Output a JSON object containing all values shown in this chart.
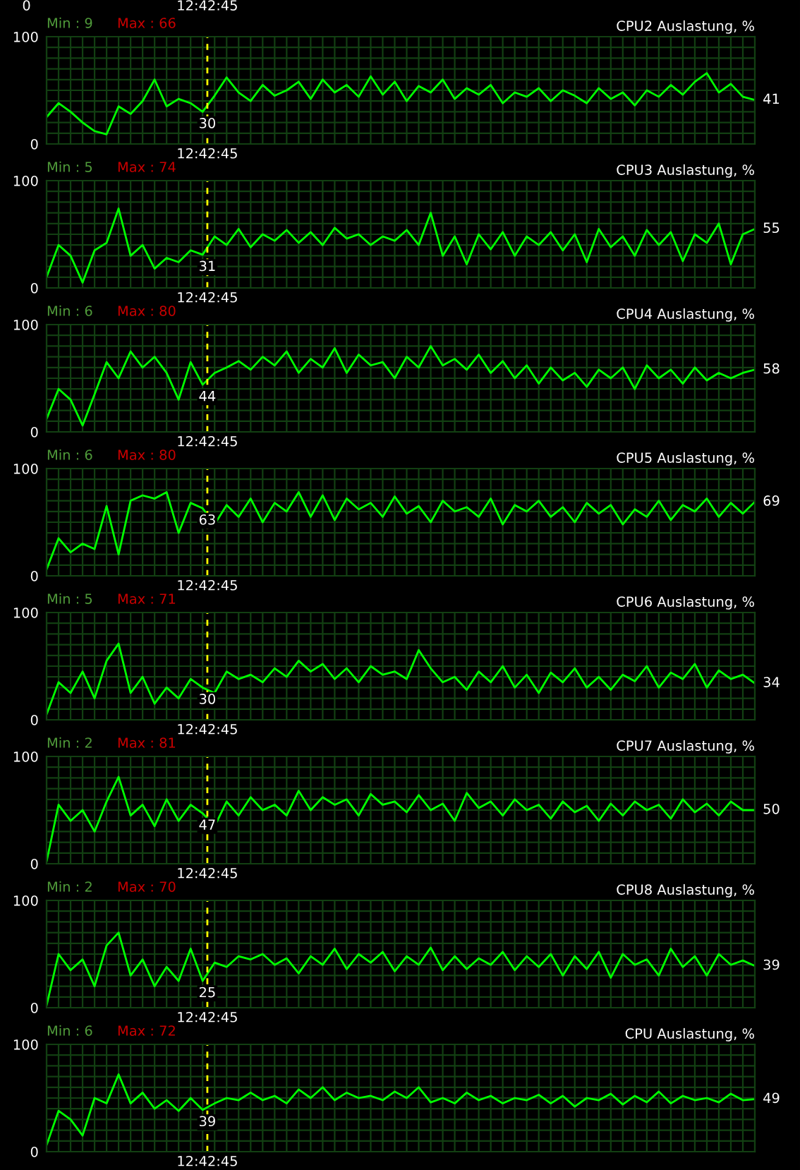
{
  "chart_data": [
    {
      "type": "line",
      "title": "CPU2 Auslastung, %",
      "categories": [
        null,
        null,
        null,
        null,
        null,
        null,
        null,
        null,
        null,
        null,
        null,
        null,
        null,
        null,
        null,
        null,
        null,
        null,
        null,
        null,
        null,
        null,
        null,
        null,
        null,
        null,
        null,
        null,
        null,
        null,
        null,
        null,
        null,
        null,
        null,
        null,
        null,
        null,
        null,
        null,
        null,
        null,
        null,
        null,
        null,
        null,
        null,
        null,
        null,
        null,
        null,
        null,
        null,
        null,
        null,
        null,
        null,
        null,
        null,
        null
      ],
      "series": [
        {
          "color": "#00ff00",
          "values": [
            25,
            38,
            30,
            20,
            12,
            9,
            35,
            28,
            40,
            60,
            35,
            42,
            38,
            30,
            45,
            62,
            48,
            40,
            55,
            45,
            50,
            58,
            42,
            60,
            48,
            55,
            44,
            63,
            46,
            58,
            40,
            54,
            48,
            60,
            42,
            52,
            46,
            55,
            38,
            48,
            44,
            52,
            40,
            50,
            45,
            38,
            52,
            42,
            48,
            36,
            50,
            44,
            55,
            46,
            58,
            66,
            48,
            56,
            44,
            41
          ]
        }
      ],
      "ylim": [
        0,
        100
      ],
      "yticks": [
        0,
        {
          "value": 10,
          "label": null
        },
        {
          "value": 20,
          "label": null
        },
        {
          "value": 30,
          "label": null
        },
        {
          "value": 40,
          "label": null
        },
        {
          "value": 50,
          "label": null
        },
        {
          "value": 60,
          "label": null
        },
        {
          "value": 70,
          "label": null
        },
        {
          "value": 80,
          "label": null
        },
        {
          "value": 90,
          "label": null
        },
        100
      ],
      "grid": true,
      "annotations": [
        "Min : 9",
        "Max : 66",
        "30",
        "41",
        "12:42:45",
        "0",
        "12:42:45"
      ]
    },
    {
      "type": "line",
      "title": "CPU3 Auslastung, %",
      "categories": [
        null,
        null,
        null,
        null,
        null,
        null,
        null,
        null,
        null,
        null,
        null,
        null,
        null,
        null,
        null,
        null,
        null,
        null,
        null,
        null,
        null,
        null,
        null,
        null,
        null,
        null,
        null,
        null,
        null,
        null,
        null,
        null,
        null,
        null,
        null,
        null,
        null,
        null,
        null,
        null,
        null,
        null,
        null,
        null,
        null,
        null,
        null,
        null,
        null,
        null,
        null,
        null,
        null,
        null,
        null,
        null,
        null,
        null,
        null,
        null
      ],
      "series": [
        {
          "color": "#00ff00",
          "values": [
            10,
            40,
            30,
            5,
            35,
            42,
            74,
            30,
            40,
            18,
            28,
            24,
            35,
            31,
            48,
            40,
            55,
            38,
            50,
            44,
            54,
            42,
            52,
            40,
            56,
            46,
            50,
            40,
            48,
            44,
            54,
            40,
            70,
            30,
            48,
            22,
            50,
            36,
            52,
            30,
            48,
            40,
            52,
            35,
            50,
            24,
            55,
            38,
            48,
            30,
            54,
            40,
            52,
            25,
            50,
            42,
            60,
            22,
            50,
            55
          ]
        }
      ],
      "ylim": [
        0,
        100
      ],
      "yticks": [
        0,
        {
          "value": 10,
          "label": null
        },
        {
          "value": 20,
          "label": null
        },
        {
          "value": 30,
          "label": null
        },
        {
          "value": 40,
          "label": null
        },
        {
          "value": 50,
          "label": null
        },
        {
          "value": 60,
          "label": null
        },
        {
          "value": 70,
          "label": null
        },
        {
          "value": 80,
          "label": null
        },
        {
          "value": 90,
          "label": null
        },
        100
      ],
      "grid": true,
      "annotations": [
        "Min : 5",
        "Max : 74",
        "31",
        "55",
        "12:42:45"
      ]
    },
    {
      "type": "line",
      "title": "CPU4 Auslastung, %",
      "categories": [
        null,
        null,
        null,
        null,
        null,
        null,
        null,
        null,
        null,
        null,
        null,
        null,
        null,
        null,
        null,
        null,
        null,
        null,
        null,
        null,
        null,
        null,
        null,
        null,
        null,
        null,
        null,
        null,
        null,
        null,
        null,
        null,
        null,
        null,
        null,
        null,
        null,
        null,
        null,
        null,
        null,
        null,
        null,
        null,
        null,
        null,
        null,
        null,
        null,
        null,
        null,
        null,
        null,
        null,
        null,
        null,
        null,
        null,
        null,
        null
      ],
      "series": [
        {
          "color": "#00ff00",
          "values": [
            12,
            40,
            30,
            6,
            35,
            65,
            50,
            75,
            60,
            70,
            55,
            30,
            65,
            44,
            55,
            60,
            66,
            58,
            70,
            62,
            75,
            55,
            68,
            60,
            78,
            55,
            72,
            62,
            65,
            50,
            70,
            60,
            80,
            62,
            68,
            58,
            72,
            55,
            66,
            50,
            62,
            45,
            60,
            48,
            55,
            42,
            58,
            50,
            60,
            40,
            62,
            50,
            58,
            45,
            60,
            48,
            55,
            50,
            55,
            58
          ]
        }
      ],
      "ylim": [
        0,
        100
      ],
      "yticks": [
        0,
        {
          "value": 10,
          "label": null
        },
        {
          "value": 20,
          "label": null
        },
        {
          "value": 30,
          "label": null
        },
        {
          "value": 40,
          "label": null
        },
        {
          "value": 50,
          "label": null
        },
        {
          "value": 60,
          "label": null
        },
        {
          "value": 70,
          "label": null
        },
        {
          "value": 80,
          "label": null
        },
        {
          "value": 90,
          "label": null
        },
        100
      ],
      "grid": true,
      "annotations": [
        "Min : 6",
        "Max : 80",
        "44",
        "58",
        "12:42:45"
      ]
    },
    {
      "type": "line",
      "title": "CPU5 Auslastung, %",
      "categories": [
        null,
        null,
        null,
        null,
        null,
        null,
        null,
        null,
        null,
        null,
        null,
        null,
        null,
        null,
        null,
        null,
        null,
        null,
        null,
        null,
        null,
        null,
        null,
        null,
        null,
        null,
        null,
        null,
        null,
        null,
        null,
        null,
        null,
        null,
        null,
        null,
        null,
        null,
        null,
        null,
        null,
        null,
        null,
        null,
        null,
        null,
        null,
        null,
        null,
        null,
        null,
        null,
        null,
        null,
        null,
        null,
        null,
        null,
        null,
        null
      ],
      "series": [
        {
          "color": "#00ff00",
          "values": [
            6,
            35,
            22,
            30,
            25,
            65,
            20,
            70,
            75,
            72,
            78,
            40,
            68,
            63,
            48,
            66,
            55,
            72,
            50,
            68,
            60,
            78,
            55,
            75,
            52,
            72,
            62,
            68,
            55,
            74,
            58,
            65,
            50,
            70,
            60,
            64,
            55,
            72,
            48,
            66,
            60,
            70,
            55,
            64,
            50,
            68,
            58,
            66,
            48,
            62,
            55,
            70,
            52,
            66,
            60,
            72,
            55,
            68,
            58,
            69
          ]
        }
      ],
      "ylim": [
        0,
        100
      ],
      "yticks": [
        0,
        {
          "value": 10,
          "label": null
        },
        {
          "value": 20,
          "label": null
        },
        {
          "value": 30,
          "label": null
        },
        {
          "value": 40,
          "label": null
        },
        {
          "value": 50,
          "label": null
        },
        {
          "value": 60,
          "label": null
        },
        {
          "value": 70,
          "label": null
        },
        {
          "value": 80,
          "label": null
        },
        {
          "value": 90,
          "label": null
        },
        100
      ],
      "grid": true,
      "annotations": [
        "Min : 6",
        "Max : 80",
        "63",
        "69",
        "12:42:45"
      ]
    },
    {
      "type": "line",
      "title": "CPU6 Auslastung, %",
      "categories": [
        null,
        null,
        null,
        null,
        null,
        null,
        null,
        null,
        null,
        null,
        null,
        null,
        null,
        null,
        null,
        null,
        null,
        null,
        null,
        null,
        null,
        null,
        null,
        null,
        null,
        null,
        null,
        null,
        null,
        null,
        null,
        null,
        null,
        null,
        null,
        null,
        null,
        null,
        null,
        null,
        null,
        null,
        null,
        null,
        null,
        null,
        null,
        null,
        null,
        null,
        null,
        null,
        null,
        null,
        null,
        null,
        null,
        null,
        null,
        null
      ],
      "series": [
        {
          "color": "#00ff00",
          "values": [
            5,
            35,
            25,
            45,
            20,
            55,
            71,
            25,
            40,
            15,
            30,
            20,
            38,
            30,
            25,
            45,
            38,
            42,
            35,
            48,
            40,
            55,
            45,
            52,
            38,
            48,
            35,
            50,
            42,
            45,
            38,
            65,
            48,
            35,
            40,
            28,
            45,
            35,
            50,
            30,
            42,
            25,
            44,
            35,
            48,
            30,
            40,
            28,
            42,
            36,
            50,
            30,
            44,
            38,
            52,
            30,
            46,
            38,
            42,
            34
          ]
        }
      ],
      "ylim": [
        0,
        100
      ],
      "yticks": [
        0,
        {
          "value": 10,
          "label": null
        },
        {
          "value": 20,
          "label": null
        },
        {
          "value": 30,
          "label": null
        },
        {
          "value": 40,
          "label": null
        },
        {
          "value": 50,
          "label": null
        },
        {
          "value": 60,
          "label": null
        },
        {
          "value": 70,
          "label": null
        },
        {
          "value": 80,
          "label": null
        },
        {
          "value": 90,
          "label": null
        },
        100
      ],
      "grid": true,
      "annotations": [
        "Min : 5",
        "Max : 71",
        "30",
        "34",
        "12:42:45"
      ]
    },
    {
      "type": "line",
      "title": "CPU7 Auslastung, %",
      "categories": [
        null,
        null,
        null,
        null,
        null,
        null,
        null,
        null,
        null,
        null,
        null,
        null,
        null,
        null,
        null,
        null,
        null,
        null,
        null,
        null,
        null,
        null,
        null,
        null,
        null,
        null,
        null,
        null,
        null,
        null,
        null,
        null,
        null,
        null,
        null,
        null,
        null,
        null,
        null,
        null,
        null,
        null,
        null,
        null,
        null,
        null,
        null,
        null,
        null,
        null,
        null,
        null,
        null,
        null,
        null,
        null,
        null,
        null,
        null,
        null
      ],
      "series": [
        {
          "color": "#00ff00",
          "values": [
            2,
            55,
            40,
            50,
            30,
            58,
            81,
            45,
            55,
            35,
            60,
            40,
            55,
            47,
            35,
            58,
            45,
            62,
            50,
            55,
            45,
            68,
            50,
            62,
            55,
            60,
            45,
            65,
            55,
            58,
            48,
            64,
            50,
            56,
            40,
            66,
            52,
            58,
            45,
            60,
            50,
            55,
            42,
            58,
            48,
            54,
            40,
            56,
            45,
            58,
            50,
            55,
            42,
            60,
            48,
            56,
            45,
            58,
            50,
            50
          ]
        }
      ],
      "ylim": [
        0,
        100
      ],
      "yticks": [
        0,
        {
          "value": 10,
          "label": null
        },
        {
          "value": 20,
          "label": null
        },
        {
          "value": 30,
          "label": null
        },
        {
          "value": 40,
          "label": null
        },
        {
          "value": 50,
          "label": null
        },
        {
          "value": 60,
          "label": null
        },
        {
          "value": 70,
          "label": null
        },
        {
          "value": 80,
          "label": null
        },
        {
          "value": 90,
          "label": null
        },
        100
      ],
      "grid": true,
      "annotations": [
        "Min : 2",
        "Max : 81",
        "47",
        "50",
        "12:42:45"
      ]
    },
    {
      "type": "line",
      "title": "CPU8 Auslastung, %",
      "categories": [
        null,
        null,
        null,
        null,
        null,
        null,
        null,
        null,
        null,
        null,
        null,
        null,
        null,
        null,
        null,
        null,
        null,
        null,
        null,
        null,
        null,
        null,
        null,
        null,
        null,
        null,
        null,
        null,
        null,
        null,
        null,
        null,
        null,
        null,
        null,
        null,
        null,
        null,
        null,
        null,
        null,
        null,
        null,
        null,
        null,
        null,
        null,
        null,
        null,
        null,
        null,
        null,
        null,
        null,
        null,
        null,
        null,
        null,
        null,
        null
      ],
      "series": [
        {
          "color": "#00ff00",
          "values": [
            2,
            50,
            35,
            45,
            20,
            58,
            70,
            30,
            45,
            20,
            38,
            25,
            55,
            25,
            42,
            38,
            48,
            45,
            50,
            40,
            46,
            32,
            48,
            40,
            55,
            36,
            50,
            42,
            52,
            34,
            48,
            40,
            56,
            35,
            48,
            36,
            46,
            40,
            52,
            35,
            48,
            38,
            50,
            30,
            48,
            36,
            52,
            28,
            50,
            40,
            45,
            30,
            55,
            38,
            48,
            30,
            50,
            40,
            44,
            39
          ]
        }
      ],
      "ylim": [
        0,
        100
      ],
      "yticks": [
        0,
        {
          "value": 10,
          "label": null
        },
        {
          "value": 20,
          "label": null
        },
        {
          "value": 30,
          "label": null
        },
        {
          "value": 40,
          "label": null
        },
        {
          "value": 50,
          "label": null
        },
        {
          "value": 60,
          "label": null
        },
        {
          "value": 70,
          "label": null
        },
        {
          "value": 80,
          "label": null
        },
        {
          "value": 90,
          "label": null
        },
        100
      ],
      "grid": true,
      "annotations": [
        "Min : 2",
        "Max : 70",
        "25",
        "39",
        "12:42:45"
      ]
    },
    {
      "type": "line",
      "title": "CPU Auslastung, %",
      "categories": [
        null,
        null,
        null,
        null,
        null,
        null,
        null,
        null,
        null,
        null,
        null,
        null,
        null,
        null,
        null,
        null,
        null,
        null,
        null,
        null,
        null,
        null,
        null,
        null,
        null,
        null,
        null,
        null,
        null,
        null,
        null,
        null,
        null,
        null,
        null,
        null,
        null,
        null,
        null,
        null,
        null,
        null,
        null,
        null,
        null,
        null,
        null,
        null,
        null,
        null,
        null,
        null,
        null,
        null,
        null,
        null,
        null,
        null,
        null,
        null
      ],
      "series": [
        {
          "color": "#00ff00",
          "values": [
            6,
            38,
            30,
            15,
            50,
            45,
            72,
            45,
            55,
            40,
            48,
            38,
            50,
            39,
            45,
            50,
            48,
            55,
            48,
            52,
            45,
            58,
            50,
            60,
            48,
            55,
            50,
            52,
            48,
            56,
            50,
            60,
            46,
            50,
            45,
            55,
            48,
            52,
            45,
            50,
            48,
            53,
            45,
            52,
            42,
            50,
            48,
            54,
            44,
            52,
            46,
            56,
            45,
            52,
            48,
            50,
            46,
            54,
            48,
            49
          ]
        }
      ],
      "ylim": [
        0,
        100
      ],
      "yticks": [
        0,
        {
          "value": 10,
          "label": null
        },
        {
          "value": 20,
          "label": null
        },
        {
          "value": 30,
          "label": null
        },
        {
          "value": 40,
          "label": null
        },
        {
          "value": 50,
          "label": null
        },
        {
          "value": 60,
          "label": null
        },
        {
          "value": 70,
          "label": null
        },
        {
          "value": 80,
          "label": null
        },
        {
          "value": 90,
          "label": null
        },
        100
      ],
      "grid": true,
      "annotations": [
        "Min : 6",
        "Max : 72",
        "39",
        "49",
        "12:42:45"
      ]
    }
  ]
}
